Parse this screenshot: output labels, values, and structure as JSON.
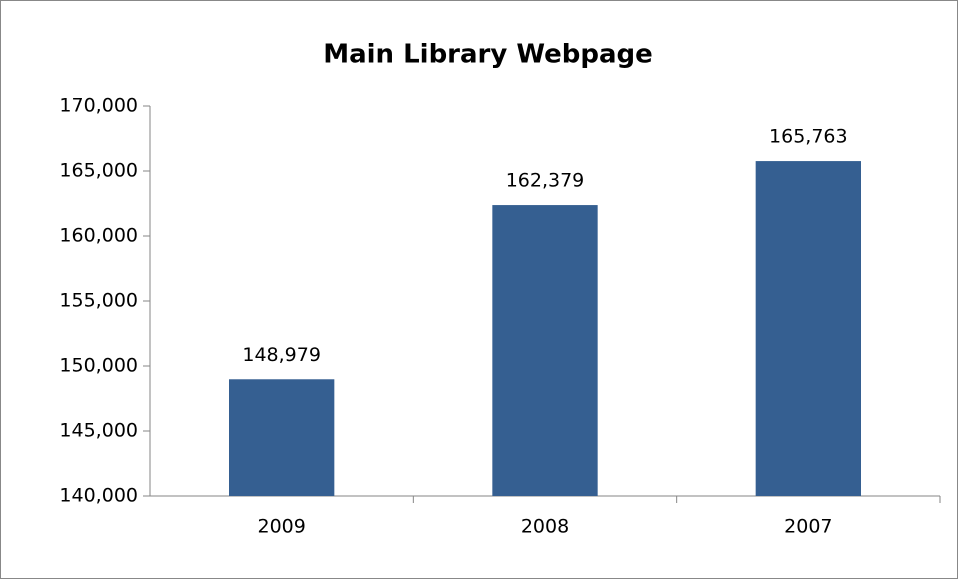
{
  "chart_data": {
    "type": "bar",
    "title": "Main Library Webpage",
    "categories": [
      "2009",
      "2008",
      "2007"
    ],
    "values": [
      148979,
      162379,
      165763
    ],
    "value_labels": [
      "148,979",
      "162,379",
      "165,763"
    ],
    "color": "#355f91",
    "ylim": [
      140000,
      170000
    ],
    "yticks": [
      {
        "value": 140000,
        "label": "140,000"
      },
      {
        "value": 145000,
        "label": "145,000"
      },
      {
        "value": 150000,
        "label": "150,000"
      },
      {
        "value": 155000,
        "label": "155,000"
      },
      {
        "value": 160000,
        "label": "160,000"
      },
      {
        "value": 165000,
        "label": "165,000"
      },
      {
        "value": 170000,
        "label": "170,000"
      }
    ],
    "grid": false
  }
}
